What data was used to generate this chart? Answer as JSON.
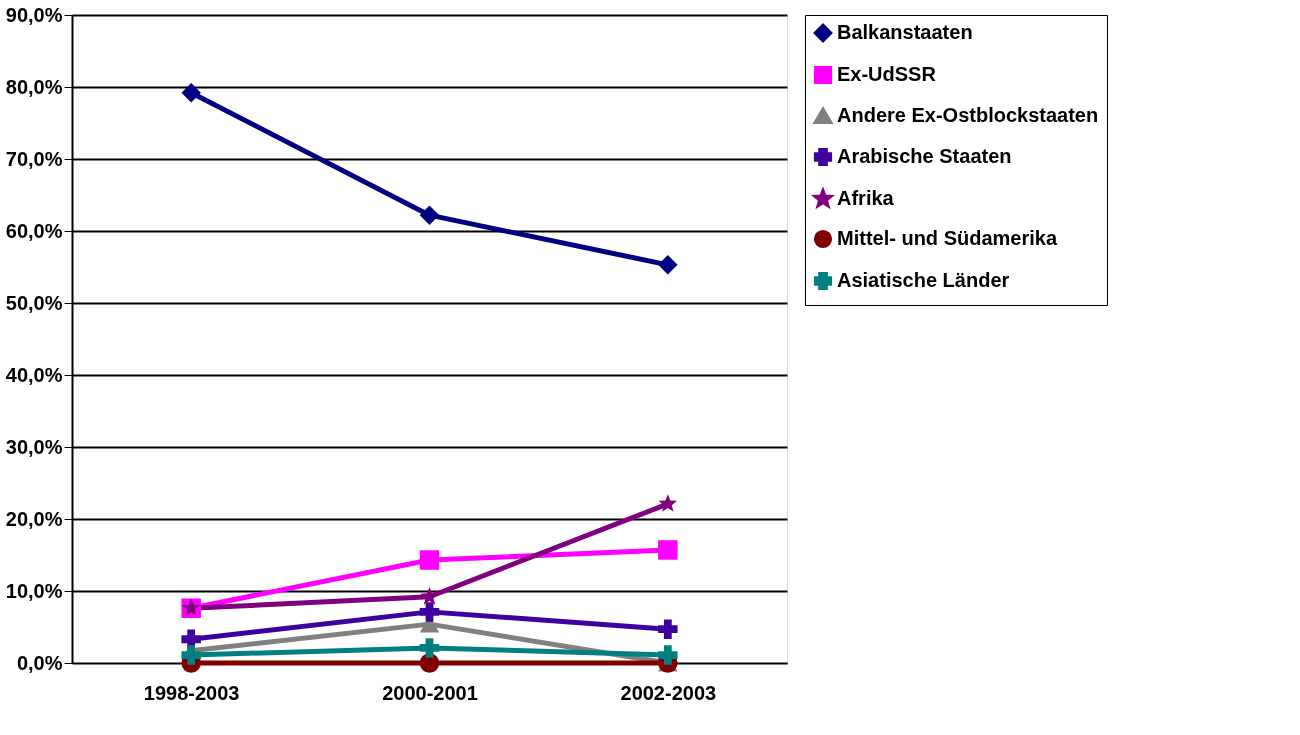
{
  "chart_data": {
    "type": "line",
    "categories": [
      "1998-2003",
      "2000-2001",
      "2002-2003"
    ],
    "series": [
      {
        "name": "Balkanstaaten",
        "color": "#000080",
        "marker": "diamond",
        "values": [
          79.2,
          62.2,
          55.3
        ]
      },
      {
        "name": "Ex-UdSSR",
        "color": "#ff00ff",
        "marker": "square",
        "values": [
          7.6,
          14.3,
          15.7
        ]
      },
      {
        "name": "Andere Ex-Ostblockstaaten",
        "color": "#808080",
        "marker": "triangle",
        "values": [
          1.7,
          5.4,
          0
        ]
      },
      {
        "name": "Arabische Staaten",
        "color": "#3f00a0",
        "marker": "cross",
        "values": [
          3.3,
          7.1,
          4.7
        ]
      },
      {
        "name": "Afrika",
        "color": "#800080",
        "marker": "star",
        "values": [
          7.6,
          9.2,
          22.1
        ]
      },
      {
        "name": "Mittel- und Südamerika",
        "color": "#800000",
        "marker": "circle",
        "values": [
          0,
          0,
          0
        ]
      },
      {
        "name": "Asiatische Länder",
        "color": "#008080",
        "marker": "cross",
        "values": [
          1.1,
          2.1,
          1.1
        ]
      }
    ],
    "ylim": [
      0,
      90
    ],
    "yticks": [
      {
        "value": 0,
        "label": "0,0%"
      },
      {
        "value": 10,
        "label": "10,0%"
      },
      {
        "value": 20,
        "label": "20,0%"
      },
      {
        "value": 30,
        "label": "30,0%"
      },
      {
        "value": 40,
        "label": "40,0%"
      },
      {
        "value": 50,
        "label": "50,0%"
      },
      {
        "value": 60,
        "label": "60,0%"
      },
      {
        "value": 70,
        "label": "70,0%"
      },
      {
        "value": 80,
        "label": "80,0%"
      },
      {
        "value": 90,
        "label": "90,0%"
      }
    ],
    "grid": "y",
    "legend": "right",
    "line_style": "solid"
  }
}
